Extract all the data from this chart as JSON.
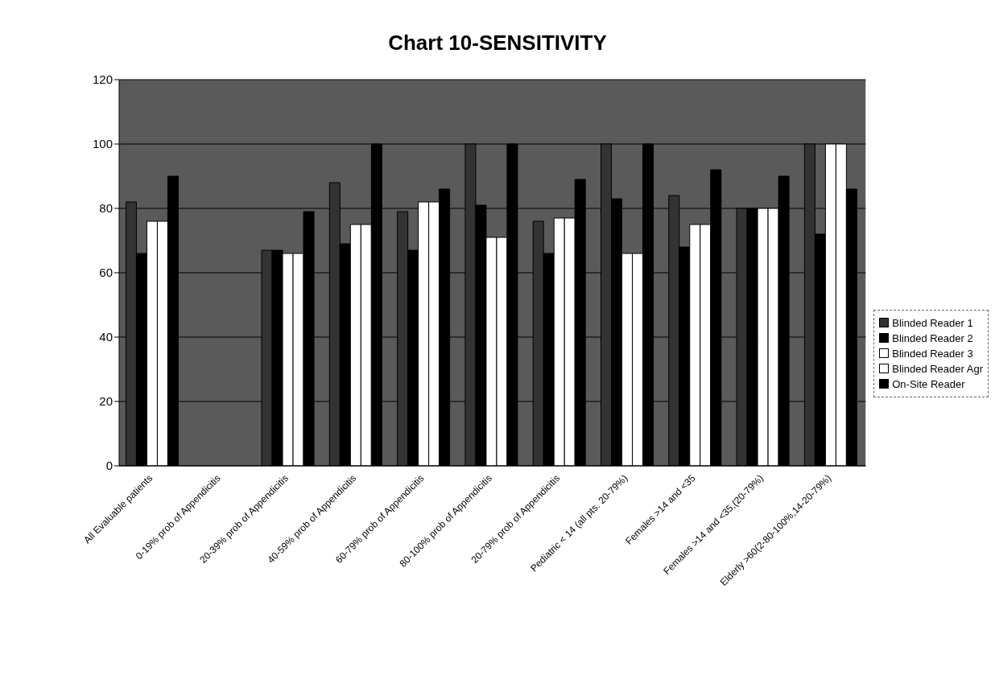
{
  "chart_data": {
    "type": "bar",
    "title": "Chart 10-SENSITIVITY",
    "categories": [
      "All Evaluable patients",
      "0-19% prob of Appendicitis",
      "20-39% prob of Appendicitis",
      "40-59% prob of Appendicitis",
      "60-79% prob of Appendicitis",
      "80-100% prob of Appendicitis",
      "20-79% prob of Appendicitis",
      "Pediatric < 14 (all pts. 20-79%)",
      "Females >14 and <35",
      "Females >14 and <35,(20-79%)",
      "Elderly >60(2-80-100%,14-20-79%)"
    ],
    "series": [
      {
        "name": "Blinded Reader 1",
        "color": "#333333",
        "values": [
          82,
          0,
          67,
          88,
          79,
          100,
          76,
          100,
          84,
          80,
          100
        ]
      },
      {
        "name": "Blinded Reader 2",
        "color": "#000000",
        "values": [
          66,
          0,
          67,
          69,
          67,
          81,
          66,
          83,
          68,
          80,
          72
        ]
      },
      {
        "name": "Blinded Reader 3",
        "color": "#ffffff",
        "values": [
          76,
          0,
          66,
          75,
          82,
          71,
          77,
          66,
          75,
          80,
          100
        ]
      },
      {
        "name": "Blinded Reader Agr",
        "color": "#ffffff",
        "values": [
          76,
          0,
          66,
          75,
          82,
          71,
          77,
          66,
          75,
          80,
          100
        ]
      },
      {
        "name": "On-Site Reader",
        "color": "#000000",
        "values": [
          90,
          0,
          79,
          100,
          86,
          100,
          89,
          100,
          92,
          90,
          86
        ]
      }
    ],
    "ylim": [
      0,
      120
    ],
    "yticks": [
      0,
      20,
      40,
      60,
      80,
      100,
      120
    ],
    "grid": "y",
    "legend": "right"
  }
}
